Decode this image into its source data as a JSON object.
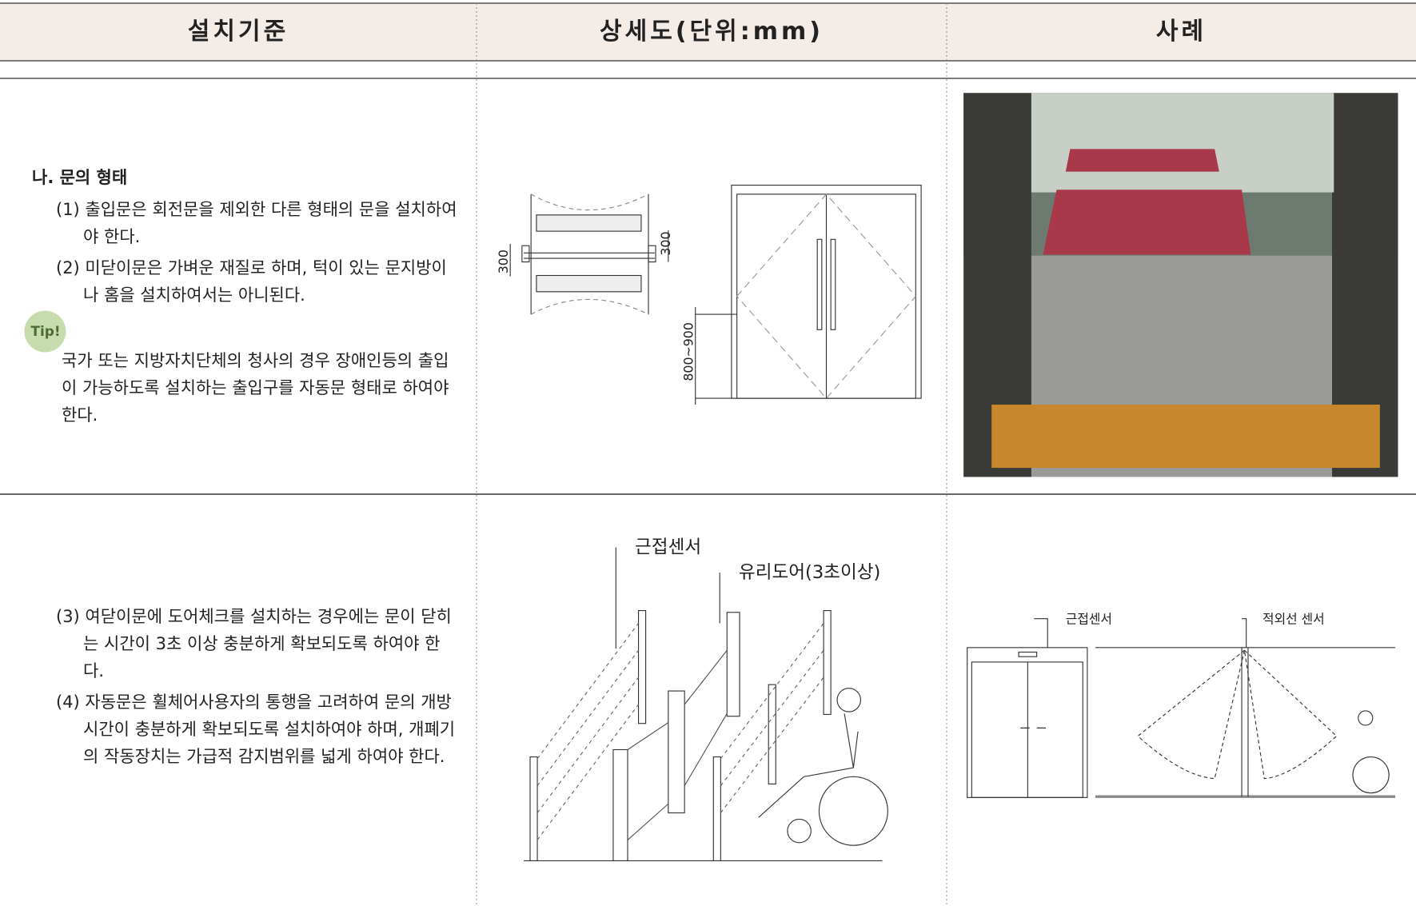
{
  "header": {
    "columns": [
      "설치기준",
      "상세도(단위:mm)",
      "사례"
    ]
  },
  "rows": [
    {
      "criteria": {
        "heading": "나. 문의 형태",
        "items": [
          "(1) 출입문은 회전문을 제외한 다른 형태의 문을 설치하여야 한다.",
          "(2) 미닫이문은 가벼운 재질로 하며, 턱이 있는 문지방이나 홈을 설치하여서는 아니된다."
        ],
        "tip": {
          "label": "Tip!",
          "text": "국가 또는 지방자치단체의 청사의 경우 장애인등의 출입이 가능하도록 설치하는 출입구를 자동문 형태로 하여야 한다."
        }
      },
      "drawing": {
        "labels": [
          "300",
          "300",
          "800~900"
        ]
      }
    },
    {
      "criteria": {
        "items": [
          "(3) 여닫이문에 도어체크를 설치하는 경우에는 문이 닫히는 시간이 3초 이상 충분하게 확보되도록 하여야 한다.",
          "(4) 자동문은 휠체어사용자의 통행을 고려하여 문의 개방시간이 충분하게 확보되도록 설치하여야 하며, 개폐기의 작동장치는 가급적 감지범위를 넓게 하여야 한다."
        ]
      },
      "drawing": {
        "labels": [
          "근접센서",
          "유리도어(3초이상)"
        ]
      },
      "example": {
        "labels": [
          "근접센서",
          "적외선 센서"
        ]
      }
    }
  ]
}
